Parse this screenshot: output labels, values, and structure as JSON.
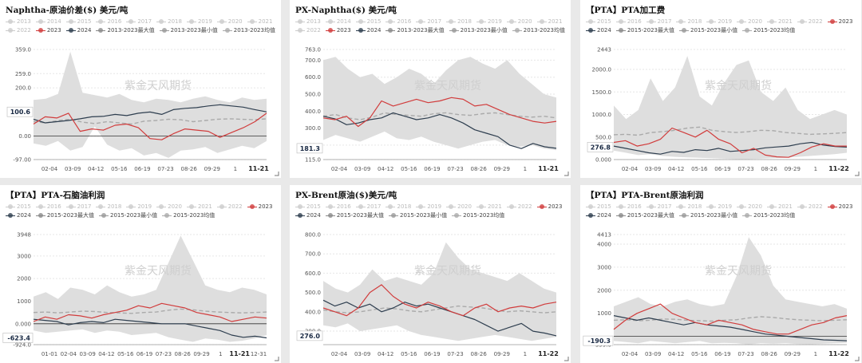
{
  "watermark": "紫金天风期货",
  "colors": {
    "series2023": "#d13c3c",
    "series2024": "#2e3e4f",
    "max": "#888888",
    "min": "#999999",
    "avg": "#aaaaaa",
    "band": "#dedede",
    "muted": "#cccccc"
  },
  "chart_data": [
    {
      "type": "line",
      "title": "Naphtha-原油价差($) 美元/吨",
      "legend": [
        {
          "label": "2013",
          "muted": true
        },
        {
          "label": "2014",
          "muted": true
        },
        {
          "label": "2015",
          "muted": true
        },
        {
          "label": "2016",
          "muted": true
        },
        {
          "label": "2017",
          "muted": true
        },
        {
          "label": "2018",
          "muted": true
        },
        {
          "label": "2019",
          "muted": true
        },
        {
          "label": "2020",
          "muted": true
        },
        {
          "label": "2021",
          "muted": true
        },
        {
          "label": "2022",
          "muted": true
        },
        {
          "label": "2023",
          "key": "s23"
        },
        {
          "label": "2024",
          "key": "s24"
        },
        {
          "label": "2013-2023最大值",
          "key": "max"
        },
        {
          "label": "2013-2023最小值",
          "key": "min"
        },
        {
          "label": "2013-2023均值",
          "key": "avg"
        }
      ],
      "ylim": [
        -97,
        359
      ],
      "yticks": [
        "359.0",
        "259.0",
        "200.0",
        "100.0",
        "0.00",
        "-97.00"
      ],
      "ytick_values": [
        359,
        259,
        200,
        100,
        0,
        -97
      ],
      "xticks": [
        "02-04",
        "03-09",
        "04-12",
        "05-16",
        "06-19",
        "07-23",
        "08-26",
        "09-29",
        "1",
        "11-21"
      ],
      "last_label": "100.6",
      "last_value": 100.6,
      "band_max": [
        150,
        155,
        175,
        350,
        180,
        170,
        160,
        175,
        150,
        140,
        155,
        150,
        140,
        155,
        165,
        150,
        140,
        160,
        150,
        155
      ],
      "band_min": [
        -30,
        -40,
        -20,
        -60,
        -45,
        40,
        -35,
        -60,
        -50,
        -80,
        -70,
        -90,
        -60,
        -55,
        -45,
        -70,
        -55,
        -40,
        -50,
        -20
      ],
      "avg": [
        60,
        55,
        65,
        70,
        58,
        52,
        60,
        55,
        50,
        62,
        65,
        70,
        68,
        60,
        65,
        70,
        72,
        70,
        68,
        72
      ],
      "s2023": [
        50,
        80,
        75,
        95,
        20,
        30,
        25,
        45,
        50,
        35,
        -10,
        -15,
        10,
        30,
        25,
        20,
        -5,
        15,
        35,
        60,
        95
      ],
      "s2024": [
        70,
        55,
        60,
        65,
        72,
        80,
        82,
        90,
        85,
        95,
        100,
        90,
        110,
        115,
        118,
        125,
        130,
        125,
        120,
        110,
        100.6
      ]
    },
    {
      "type": "line",
      "title": "PX-Naphtha($) 美元/吨",
      "legend": [
        {
          "label": "2013",
          "muted": true
        },
        {
          "label": "2014",
          "muted": true
        },
        {
          "label": "2015",
          "muted": true
        },
        {
          "label": "2016",
          "muted": true
        },
        {
          "label": "2017",
          "muted": true
        },
        {
          "label": "2018",
          "muted": true
        },
        {
          "label": "2019",
          "muted": true
        },
        {
          "label": "2020",
          "muted": true
        },
        {
          "label": "2021",
          "muted": true
        },
        {
          "label": "2022",
          "muted": true
        },
        {
          "label": "2023",
          "key": "s23"
        },
        {
          "label": "2024",
          "key": "s24"
        },
        {
          "label": "2013-2023最大值",
          "key": "max"
        },
        {
          "label": "2013-2023最小值",
          "key": "min"
        },
        {
          "label": "2013-2023均值",
          "key": "avg"
        }
      ],
      "ylim": [
        115,
        763
      ],
      "yticks": [
        "763.0",
        "700.0",
        "600.0",
        "500.0",
        "400.0",
        "300.0",
        "200.0",
        "115.0"
      ],
      "ytick_values": [
        763,
        700,
        600,
        500,
        400,
        300,
        200,
        115
      ],
      "xticks": [
        "02-04",
        "03-09",
        "04-12",
        "05-16",
        "06-19",
        "07-23",
        "08-26",
        "09-29",
        "1",
        "11-21"
      ],
      "last_label": "181.3",
      "last_value": 181.3,
      "band_max": [
        700,
        720,
        650,
        600,
        620,
        560,
        600,
        650,
        620,
        560,
        640,
        700,
        720,
        680,
        650,
        700,
        620,
        560,
        500,
        480
      ],
      "band_min": [
        230,
        260,
        240,
        220,
        250,
        280,
        240,
        230,
        250,
        220,
        200,
        180,
        200,
        220,
        230,
        200,
        190,
        200,
        180,
        170
      ],
      "avg": [
        370,
        380,
        360,
        350,
        365,
        390,
        380,
        375,
        370,
        385,
        390,
        380,
        375,
        385,
        390,
        380,
        370,
        365,
        370,
        360
      ],
      "s2023": [
        360,
        350,
        370,
        310,
        360,
        460,
        430,
        450,
        470,
        450,
        460,
        480,
        470,
        430,
        440,
        410,
        380,
        360,
        340,
        330,
        340
      ],
      "s2024": [
        370,
        355,
        320,
        330,
        350,
        360,
        390,
        370,
        350,
        360,
        380,
        360,
        330,
        290,
        270,
        250,
        200,
        180,
        210,
        190,
        181.3
      ]
    },
    {
      "type": "line",
      "title": "【PTA】PTA加工费",
      "legend": [
        {
          "label": "2015",
          "muted": true
        },
        {
          "label": "2016",
          "muted": true
        },
        {
          "label": "2017",
          "muted": true
        },
        {
          "label": "2018",
          "muted": true
        },
        {
          "label": "2019",
          "muted": true
        },
        {
          "label": "2020",
          "muted": true
        },
        {
          "label": "2021",
          "muted": true
        },
        {
          "label": "2022",
          "muted": true
        },
        {
          "label": "2023",
          "key": "s23"
        },
        {
          "label": "2024",
          "key": "s24"
        },
        {
          "label": "2015-2023最大值",
          "key": "max"
        },
        {
          "label": "2015-2023最小值",
          "key": "min"
        },
        {
          "label": "2015-2023均值",
          "key": "avg"
        }
      ],
      "ylim": [
        0,
        2443
      ],
      "yticks": [
        "2443",
        "2000.0",
        "1500.0",
        "1000.0",
        "500.0",
        "0.000"
      ],
      "ytick_values": [
        2443,
        2000,
        1500,
        1000,
        500,
        0
      ],
      "xticks": [
        "02-04",
        "03-09",
        "04-12",
        "05-16",
        "06-19",
        "07-23",
        "08-26",
        "09-29",
        "1",
        "11-22"
      ],
      "last_label": "276.8",
      "last_value": 276.8,
      "band_max": [
        1200,
        900,
        1100,
        1800,
        1300,
        1600,
        2300,
        1400,
        1200,
        1700,
        2100,
        2200,
        1500,
        1300,
        1600,
        1100,
        900,
        1000,
        1100,
        1000
      ],
      "band_min": [
        200,
        150,
        100,
        120,
        80,
        60,
        50,
        40,
        30,
        20,
        10,
        10,
        20,
        30,
        40,
        60,
        80,
        100,
        120,
        150
      ],
      "avg": [
        550,
        560,
        540,
        600,
        620,
        650,
        700,
        720,
        650,
        620,
        600,
        620,
        650,
        640,
        600,
        580,
        560,
        570,
        580,
        600
      ],
      "s2023": [
        380,
        420,
        300,
        350,
        450,
        700,
        600,
        500,
        650,
        450,
        350,
        150,
        250,
        100,
        60,
        50,
        150,
        280,
        350,
        300,
        300
      ],
      "s2024": [
        300,
        250,
        200,
        150,
        120,
        180,
        160,
        220,
        200,
        250,
        180,
        200,
        220,
        260,
        280,
        300,
        350,
        380,
        320,
        290,
        276.8
      ]
    },
    {
      "type": "line",
      "title": "【PTA】PTA-石脑油利润",
      "legend": [
        {
          "label": "2015",
          "muted": true
        },
        {
          "label": "2016",
          "muted": true
        },
        {
          "label": "2017",
          "muted": true
        },
        {
          "label": "2018",
          "muted": true
        },
        {
          "label": "2019",
          "muted": true
        },
        {
          "label": "2020",
          "muted": true
        },
        {
          "label": "2021",
          "muted": true
        },
        {
          "label": "2022",
          "muted": true
        },
        {
          "label": "2023",
          "key": "s23"
        },
        {
          "label": "2024",
          "key": "s24"
        },
        {
          "label": "2015-2023最大值",
          "key": "max"
        },
        {
          "label": "2015-2023最小值",
          "key": "min"
        },
        {
          "label": "2015-2023均值",
          "key": "avg"
        }
      ],
      "ylim": [
        -924,
        3948
      ],
      "yticks": [
        "3948",
        "3000",
        "2000",
        "1000",
        "0.000",
        "-924.0"
      ],
      "ytick_values": [
        3948,
        3000,
        2000,
        1000,
        0,
        -924
      ],
      "xticks": [
        "01-01",
        "02-04",
        "03-09",
        "04-12",
        "05-16",
        "06-19",
        "07-23",
        "08-26",
        "09-29",
        "1",
        "11-21",
        "12-31"
      ],
      "last_label": "-623.4",
      "last_value": -623.4,
      "band_max": [
        1200,
        1400,
        1100,
        1600,
        1500,
        1300,
        1700,
        1400,
        1200,
        1300,
        1500,
        2700,
        3900,
        2800,
        1700,
        1500,
        1400,
        1600,
        1500,
        1300
      ],
      "band_min": [
        -300,
        -400,
        -350,
        -300,
        -250,
        -400,
        -300,
        -350,
        -500,
        -450,
        -400,
        -600,
        -700,
        -800,
        -650,
        -700,
        -800,
        -750,
        -650,
        -500
      ],
      "avg": [
        500,
        520,
        480,
        520,
        560,
        540,
        500,
        480,
        460,
        500,
        520,
        600,
        650,
        620,
        560,
        520,
        500,
        480,
        500,
        520
      ],
      "s2023": [
        100,
        300,
        200,
        400,
        350,
        250,
        400,
        500,
        600,
        800,
        700,
        900,
        800,
        700,
        500,
        400,
        300,
        100,
        200,
        300,
        250
      ],
      "s2024": [
        200,
        150,
        100,
        -50,
        50,
        100,
        50,
        200,
        150,
        100,
        50,
        0,
        0,
        0,
        -100,
        -200,
        -300,
        -500,
        -600,
        -550,
        -623.4
      ]
    },
    {
      "type": "line",
      "title": "PX-Brent原油($)美元/吨",
      "legend": [
        {
          "label": "2015",
          "muted": true
        },
        {
          "label": "2016",
          "muted": true
        },
        {
          "label": "2017",
          "muted": true
        },
        {
          "label": "2018",
          "muted": true
        },
        {
          "label": "2019",
          "muted": true
        },
        {
          "label": "2020",
          "muted": true
        },
        {
          "label": "2021",
          "muted": true
        },
        {
          "label": "2022",
          "muted": true
        },
        {
          "label": "2023",
          "key": "s23"
        },
        {
          "label": "2024",
          "key": "s24"
        },
        {
          "label": "2015-2023最大值",
          "key": "max"
        },
        {
          "label": "2015-2023最小值",
          "key": "min"
        },
        {
          "label": "2015-2023均值",
          "key": "avg"
        }
      ],
      "ylim": [
        230,
        800
      ],
      "yticks": [
        "800.0",
        "700.0",
        "600.0",
        "500.0",
        "400.0",
        "300.0"
      ],
      "ytick_values": [
        800,
        700,
        600,
        500,
        400,
        300
      ],
      "xticks": [
        "02-04",
        "03-09",
        "04-12",
        "05-16",
        "06-19",
        "07-23",
        "08-26",
        "09-29",
        "1",
        "11-22"
      ],
      "last_label": "276.0",
      "last_value": 276.0,
      "band_max": [
        560,
        520,
        500,
        540,
        620,
        560,
        580,
        560,
        540,
        600,
        760,
        680,
        620,
        600,
        580,
        560,
        600,
        560,
        520,
        500
      ],
      "band_min": [
        330,
        320,
        340,
        300,
        310,
        320,
        330,
        300,
        280,
        270,
        260,
        250,
        260,
        270,
        280,
        270,
        260,
        250,
        260,
        270
      ],
      "avg": [
        410,
        400,
        395,
        400,
        410,
        420,
        415,
        405,
        400,
        410,
        420,
        430,
        425,
        420,
        410,
        400,
        405,
        400,
        395,
        400
      ],
      "s2023": [
        420,
        400,
        380,
        420,
        500,
        540,
        480,
        440,
        420,
        450,
        430,
        400,
        380,
        420,
        440,
        400,
        420,
        430,
        420,
        440,
        450
      ],
      "s2024": [
        460,
        430,
        450,
        420,
        440,
        400,
        420,
        450,
        430,
        440,
        420,
        400,
        380,
        360,
        330,
        300,
        320,
        340,
        300,
        290,
        276.0
      ]
    },
    {
      "type": "line",
      "title": "【PTA】PTA-Brent原油利润",
      "legend": [
        {
          "label": "2015",
          "muted": true
        },
        {
          "label": "2016",
          "muted": true
        },
        {
          "label": "2017",
          "muted": true
        },
        {
          "label": "2018",
          "muted": true
        },
        {
          "label": "2019",
          "muted": true
        },
        {
          "label": "2020",
          "muted": true
        },
        {
          "label": "2021",
          "muted": true
        },
        {
          "label": "2022",
          "muted": true
        },
        {
          "label": "2023",
          "key": "s23"
        },
        {
          "label": "2024",
          "key": "s24"
        },
        {
          "label": "2015-2023最大值",
          "key": "max"
        },
        {
          "label": "2015-2023最小值",
          "key": "min"
        },
        {
          "label": "2015-2023均值",
          "key": "avg"
        }
      ],
      "ylim": [
        -359,
        4413
      ],
      "yticks": [
        "4413",
        "4000",
        "3000",
        "2000",
        "1000",
        "-359.0"
      ],
      "ytick_values": [
        4413,
        4000,
        3000,
        2000,
        1000,
        -359
      ],
      "xticks": [
        "02-04",
        "03-09",
        "04-12",
        "05-16",
        "06-19",
        "07-23",
        "08-26",
        "09-29",
        "1",
        "11-22"
      ],
      "last_label": "-190.3",
      "last_value": -190.3,
      "band_max": [
        1300,
        1500,
        1700,
        1400,
        1300,
        1500,
        1600,
        1400,
        1300,
        1400,
        2600,
        4300,
        3500,
        2200,
        1600,
        1500,
        1400,
        1300,
        1400,
        1200
      ],
      "band_min": [
        -200,
        -250,
        -300,
        -200,
        -250,
        -300,
        -250,
        -200,
        -300,
        -280,
        -300,
        -350,
        -300,
        -320,
        -300,
        -330,
        -340,
        -320,
        -300,
        -280
      ],
      "avg": [
        700,
        720,
        680,
        700,
        750,
        740,
        700,
        680,
        660,
        700,
        720,
        800,
        850,
        820,
        760,
        720,
        700,
        680,
        700,
        720
      ],
      "s2023": [
        300,
        700,
        1000,
        1200,
        1400,
        1000,
        800,
        600,
        500,
        700,
        600,
        500,
        300,
        200,
        100,
        100,
        300,
        500,
        600,
        800,
        900
      ],
      "s2024": [
        900,
        800,
        700,
        800,
        700,
        600,
        500,
        600,
        500,
        450,
        400,
        300,
        200,
        100,
        50,
        0,
        -50,
        -100,
        -150,
        -170,
        -190.3
      ]
    }
  ]
}
